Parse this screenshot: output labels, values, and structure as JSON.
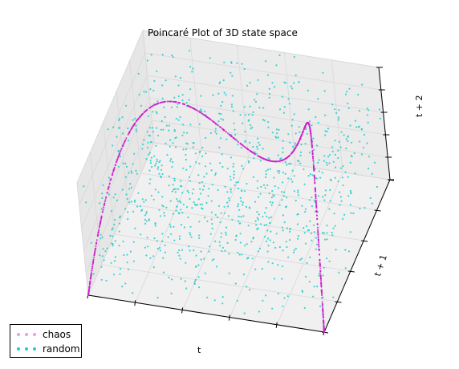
{
  "chart_data": {
    "type": "scatter",
    "projection": "3d",
    "title": "Poincaré Plot of 3D state space",
    "xlabel": "t",
    "ylabel": "t + 1",
    "zlabel": "t + 2",
    "xlim": [
      0,
      1
    ],
    "ylim": [
      0,
      1
    ],
    "zlim": [
      0,
      1
    ],
    "grid": true,
    "legend": "bottom-left",
    "series": [
      {
        "name": "chaos",
        "color": "#cc22cc",
        "marker": "dot",
        "generator": "logistic map x(n+1) = 4 x(n) (1 - x(n)); points (x_t, x_t+1, x_t+2)",
        "point_count": 1000
      },
      {
        "name": "random",
        "color": "#22cccc",
        "marker": "dot",
        "generator": "uniform random x_t; points (x_t, x_t+1, x_t+2)",
        "point_count": 1000
      }
    ]
  }
}
